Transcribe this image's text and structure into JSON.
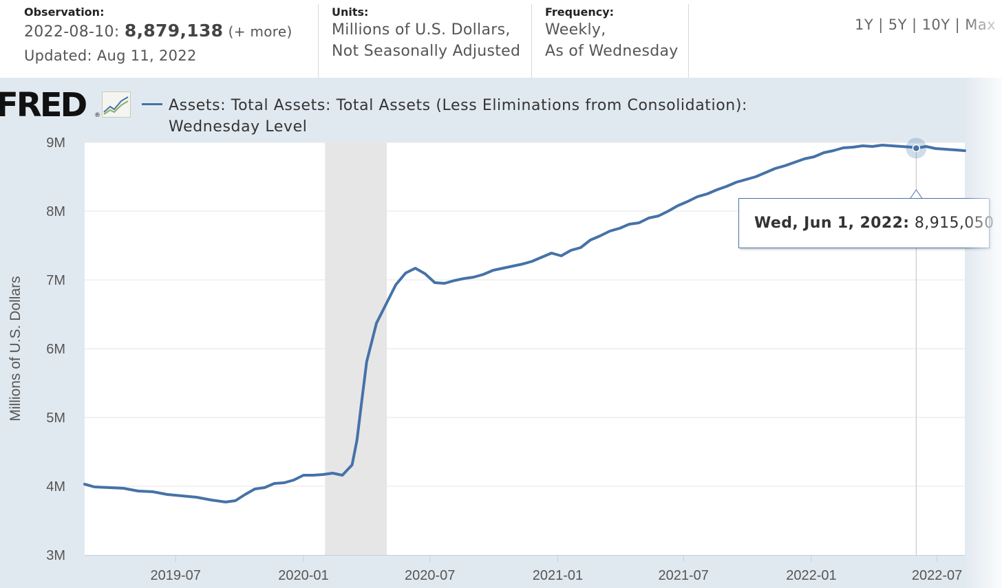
{
  "header": {
    "observation_label": "Observation:",
    "observation_date": "2022-08-10:",
    "observation_value": "8,879,138",
    "observation_more": "(+ more)",
    "updated": "Updated: Aug 11, 2022",
    "units_label": "Units:",
    "units_line1": "Millions of U.S. Dollars,",
    "units_line2": "Not Seasonally Adjusted",
    "frequency_label": "Frequency:",
    "frequency_line1": "Weekly,",
    "frequency_line2": "As of Wednesday",
    "range_options": [
      "1Y",
      "5Y",
      "10Y",
      "Max"
    ]
  },
  "logo": {
    "text": "FRED",
    "reg": "®"
  },
  "tooltip": {
    "date": "Wed, Jun 1, 2022:",
    "value": "8,915,050"
  },
  "colors": {
    "series": "#4572a7",
    "background": "#e1e9f0",
    "recession": "#e6e6e6",
    "tooltip_border": "#4572a7"
  },
  "chart_data": {
    "type": "line",
    "title": "Assets: Total Assets: Total Assets (Less Eliminations from Consolidation): Wednesday Level",
    "ylabel": "Millions of U.S. Dollars",
    "xlabel": "",
    "ylim": [
      3000000,
      9000000
    ],
    "xlim": [
      "2019-02-20",
      "2022-08-10"
    ],
    "y_ticks": [
      {
        "value": 3000000,
        "label": "3M"
      },
      {
        "value": 4000000,
        "label": "4M"
      },
      {
        "value": 5000000,
        "label": "5M"
      },
      {
        "value": 6000000,
        "label": "6M"
      },
      {
        "value": 7000000,
        "label": "7M"
      },
      {
        "value": 8000000,
        "label": "8M"
      },
      {
        "value": 9000000,
        "label": "9M"
      }
    ],
    "x_ticks": [
      {
        "value": "2019-07-01",
        "label": "2019-07"
      },
      {
        "value": "2020-01-01",
        "label": "2020-01"
      },
      {
        "value": "2020-07-01",
        "label": "2020-07"
      },
      {
        "value": "2021-01-01",
        "label": "2021-01"
      },
      {
        "value": "2021-07-01",
        "label": "2021-07"
      },
      {
        "value": "2022-01-01",
        "label": "2022-01"
      },
      {
        "value": "2022-07-01",
        "label": "2022-07"
      }
    ],
    "recession": [
      "2020-02-01",
      "2020-04-30"
    ],
    "grid": true,
    "highlight": {
      "x": "2022-06-01",
      "y": 8915050
    },
    "series": [
      {
        "name": "Assets: Total Assets: Total Assets (Less Eliminations from Consolidation): Wednesday Level",
        "points": [
          [
            "2019-02-20",
            4030000
          ],
          [
            "2019-03-06",
            3990000
          ],
          [
            "2019-03-27",
            3980000
          ],
          [
            "2019-04-17",
            3970000
          ],
          [
            "2019-05-08",
            3930000
          ],
          [
            "2019-05-29",
            3920000
          ],
          [
            "2019-06-19",
            3880000
          ],
          [
            "2019-07-10",
            3860000
          ],
          [
            "2019-07-31",
            3840000
          ],
          [
            "2019-08-21",
            3800000
          ],
          [
            "2019-09-11",
            3770000
          ],
          [
            "2019-09-25",
            3790000
          ],
          [
            "2019-10-09",
            3880000
          ],
          [
            "2019-10-23",
            3960000
          ],
          [
            "2019-11-06",
            3980000
          ],
          [
            "2019-11-20",
            4040000
          ],
          [
            "2019-12-04",
            4050000
          ],
          [
            "2019-12-18",
            4090000
          ],
          [
            "2020-01-01",
            4160000
          ],
          [
            "2020-01-15",
            4160000
          ],
          [
            "2020-01-29",
            4170000
          ],
          [
            "2020-02-12",
            4190000
          ],
          [
            "2020-02-26",
            4160000
          ],
          [
            "2020-03-11",
            4310000
          ],
          [
            "2020-03-18",
            4670000
          ],
          [
            "2020-03-25",
            5250000
          ],
          [
            "2020-04-01",
            5810000
          ],
          [
            "2020-04-15",
            6370000
          ],
          [
            "2020-04-29",
            6650000
          ],
          [
            "2020-05-13",
            6930000
          ],
          [
            "2020-05-27",
            7100000
          ],
          [
            "2020-06-10",
            7170000
          ],
          [
            "2020-06-24",
            7090000
          ],
          [
            "2020-07-08",
            6960000
          ],
          [
            "2020-07-22",
            6950000
          ],
          [
            "2020-08-05",
            6990000
          ],
          [
            "2020-08-19",
            7020000
          ],
          [
            "2020-09-02",
            7040000
          ],
          [
            "2020-09-16",
            7080000
          ],
          [
            "2020-09-30",
            7140000
          ],
          [
            "2020-10-14",
            7170000
          ],
          [
            "2020-10-28",
            7200000
          ],
          [
            "2020-11-11",
            7230000
          ],
          [
            "2020-11-25",
            7270000
          ],
          [
            "2020-12-09",
            7330000
          ],
          [
            "2020-12-23",
            7390000
          ],
          [
            "2021-01-06",
            7350000
          ],
          [
            "2021-01-20",
            7430000
          ],
          [
            "2021-02-03",
            7470000
          ],
          [
            "2021-02-17",
            7580000
          ],
          [
            "2021-03-03",
            7640000
          ],
          [
            "2021-03-17",
            7710000
          ],
          [
            "2021-03-31",
            7750000
          ],
          [
            "2021-04-14",
            7810000
          ],
          [
            "2021-04-28",
            7830000
          ],
          [
            "2021-05-12",
            7900000
          ],
          [
            "2021-05-26",
            7930000
          ],
          [
            "2021-06-09",
            8000000
          ],
          [
            "2021-06-23",
            8080000
          ],
          [
            "2021-07-07",
            8140000
          ],
          [
            "2021-07-21",
            8210000
          ],
          [
            "2021-08-04",
            8250000
          ],
          [
            "2021-08-18",
            8310000
          ],
          [
            "2021-09-01",
            8360000
          ],
          [
            "2021-09-15",
            8420000
          ],
          [
            "2021-09-29",
            8460000
          ],
          [
            "2021-10-13",
            8500000
          ],
          [
            "2021-10-27",
            8560000
          ],
          [
            "2021-11-10",
            8620000
          ],
          [
            "2021-11-24",
            8660000
          ],
          [
            "2021-12-08",
            8710000
          ],
          [
            "2021-12-22",
            8760000
          ],
          [
            "2022-01-05",
            8790000
          ],
          [
            "2022-01-19",
            8850000
          ],
          [
            "2022-02-02",
            8880000
          ],
          [
            "2022-02-16",
            8920000
          ],
          [
            "2022-03-02",
            8930000
          ],
          [
            "2022-03-16",
            8950000
          ],
          [
            "2022-03-30",
            8940000
          ],
          [
            "2022-04-13",
            8960000
          ],
          [
            "2022-04-27",
            8950000
          ],
          [
            "2022-05-11",
            8940000
          ],
          [
            "2022-05-25",
            8930000
          ],
          [
            "2022-06-01",
            8915050
          ],
          [
            "2022-06-15",
            8940000
          ],
          [
            "2022-06-29",
            8910000
          ],
          [
            "2022-07-13",
            8900000
          ],
          [
            "2022-07-27",
            8890000
          ],
          [
            "2022-08-10",
            8879138
          ]
        ]
      }
    ]
  }
}
